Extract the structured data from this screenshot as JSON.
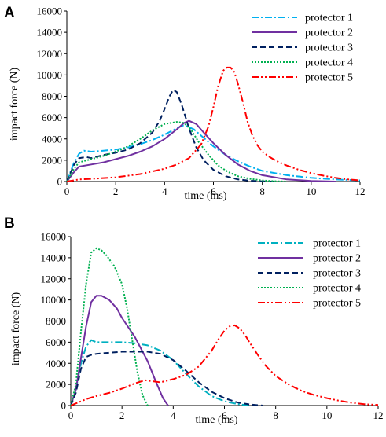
{
  "chart_data": [
    {
      "panel": "A",
      "type": "line",
      "xlabel": "time (ms)",
      "ylabel": "impact force (N)",
      "xlim": [
        0,
        12
      ],
      "ylim": [
        0,
        16000
      ],
      "xticks": [
        0,
        2,
        4,
        6,
        8,
        10,
        12
      ],
      "yticks": [
        0,
        2000,
        4000,
        6000,
        8000,
        10000,
        12000,
        14000,
        16000
      ],
      "legend_position": "top-right",
      "series": [
        {
          "name": "protector 1",
          "color": "#00b0f0",
          "dash": "dashdot",
          "x": [
            0,
            0.3,
            0.5,
            0.7,
            1,
            1.5,
            2,
            2.5,
            3,
            3.5,
            4,
            4.5,
            4.8,
            5.2,
            5.6,
            6,
            6.5,
            7,
            7.5,
            8,
            9,
            10,
            11,
            12
          ],
          "y": [
            0,
            1800,
            2600,
            2900,
            2800,
            2900,
            3000,
            3200,
            3500,
            3900,
            4400,
            5000,
            5300,
            4900,
            4100,
            3300,
            2500,
            1900,
            1400,
            1000,
            600,
            350,
            200,
            100
          ]
        },
        {
          "name": "protector 2",
          "color": "#7030a0",
          "dash": "solid",
          "x": [
            0,
            0.3,
            0.5,
            1,
            1.5,
            2,
            2.5,
            3,
            3.5,
            4,
            4.5,
            4.8,
            5,
            5.3,
            5.6,
            6,
            6.5,
            7,
            7.5,
            8,
            9,
            10,
            11
          ],
          "y": [
            0,
            900,
            1400,
            1600,
            1800,
            2100,
            2400,
            2800,
            3300,
            4000,
            4900,
            5500,
            5700,
            5400,
            4600,
            3600,
            2500,
            1600,
            1000,
            600,
            200,
            60,
            0
          ]
        },
        {
          "name": "protector 3",
          "color": "#002060",
          "dash": "dashed",
          "x": [
            0,
            0.3,
            0.5,
            0.8,
            1,
            1.5,
            2,
            2.5,
            3,
            3.5,
            3.8,
            4,
            4.2,
            4.35,
            4.5,
            4.7,
            5,
            5.3,
            5.6,
            6,
            6.5,
            7,
            7.5,
            8,
            8.5
          ],
          "y": [
            0,
            1600,
            2200,
            2300,
            2200,
            2500,
            2700,
            3000,
            3600,
            4600,
            5700,
            6800,
            8000,
            8600,
            8400,
            7200,
            5000,
            3200,
            2000,
            1100,
            500,
            200,
            80,
            20,
            0
          ]
        },
        {
          "name": "protector 4",
          "color": "#00b050",
          "dash": "dotted",
          "x": [
            0,
            0.3,
            0.5,
            1,
            1.5,
            2,
            2.5,
            3,
            3.5,
            4,
            4.5,
            4.8,
            5.1,
            5.4,
            5.8,
            6.2,
            6.6,
            7,
            7.5,
            8,
            8.5,
            9
          ],
          "y": [
            0,
            1200,
            1800,
            2100,
            2400,
            2800,
            3300,
            4000,
            4800,
            5400,
            5600,
            5500,
            4800,
            3700,
            2500,
            1500,
            900,
            500,
            250,
            100,
            30,
            0
          ]
        },
        {
          "name": "protector 5",
          "color": "#ff0000",
          "dash": "dashdotdot",
          "x": [
            0,
            0.5,
            1,
            2,
            3,
            4,
            4.5,
            5,
            5.5,
            5.8,
            6,
            6.2,
            6.4,
            6.55,
            6.7,
            6.85,
            7,
            7.2,
            7.4,
            7.6,
            7.8,
            8,
            8.3,
            8.6,
            9,
            9.5,
            10,
            10.5,
            11,
            11.5,
            12
          ],
          "y": [
            0,
            200,
            250,
            400,
            700,
            1200,
            1600,
            2200,
            3500,
            5200,
            7000,
            9000,
            10400,
            10700,
            10700,
            10300,
            9200,
            7500,
            5600,
            4300,
            3400,
            2800,
            2300,
            1900,
            1500,
            1100,
            800,
            550,
            350,
            200,
            100
          ]
        }
      ]
    },
    {
      "panel": "B",
      "type": "line",
      "xlabel": "time (ms)",
      "ylabel": "impact force (N)",
      "xlim": [
        0,
        12
      ],
      "ylim": [
        0,
        16000
      ],
      "xticks": [
        0,
        2,
        4,
        6,
        8,
        10,
        12
      ],
      "yticks": [
        0,
        2000,
        4000,
        6000,
        8000,
        10000,
        12000,
        14000,
        16000
      ],
      "legend_position": "top-right",
      "series": [
        {
          "name": "protector 1",
          "color": "#00b0c0",
          "dash": "dashdot",
          "x": [
            0,
            0.2,
            0.4,
            0.6,
            0.8,
            1,
            1.5,
            2,
            2.5,
            3,
            3.5,
            4,
            4.5,
            5,
            5.5,
            6,
            6.5,
            7
          ],
          "y": [
            0,
            1500,
            4000,
            5600,
            6200,
            6000,
            6000,
            6000,
            5900,
            5700,
            5200,
            4300,
            3000,
            1800,
            900,
            400,
            150,
            0
          ]
        },
        {
          "name": "protector 2",
          "color": "#7030a0",
          "dash": "solid",
          "x": [
            0,
            0.2,
            0.4,
            0.6,
            0.8,
            1,
            1.2,
            1.5,
            1.8,
            2,
            2.5,
            3,
            3.3,
            3.6,
            3.8
          ],
          "y": [
            0,
            1500,
            4500,
            7500,
            9800,
            10400,
            10400,
            10000,
            9200,
            8300,
            6500,
            4200,
            2400,
            700,
            0
          ]
        },
        {
          "name": "protector 3",
          "color": "#002060",
          "dash": "dashed",
          "x": [
            0,
            0.2,
            0.4,
            0.6,
            0.8,
            1,
            1.5,
            2,
            2.5,
            3,
            3.5,
            4,
            4.5,
            5,
            5.5,
            6,
            6.5,
            7,
            7.5
          ],
          "y": [
            0,
            1200,
            3500,
            4600,
            4800,
            4900,
            5000,
            5100,
            5100,
            5100,
            4900,
            4300,
            3300,
            2200,
            1300,
            700,
            300,
            100,
            0
          ]
        },
        {
          "name": "protector 4",
          "color": "#00b050",
          "dash": "dotted",
          "x": [
            0,
            0.2,
            0.4,
            0.6,
            0.8,
            1,
            1.2,
            1.4,
            1.7,
            2,
            2.2,
            2.4,
            2.6,
            2.8,
            3
          ],
          "y": [
            0,
            2000,
            7000,
            11500,
            14500,
            14900,
            14700,
            14200,
            13200,
            11500,
            9200,
            6200,
            3200,
            1000,
            0
          ]
        },
        {
          "name": "protector 5",
          "color": "#ff0000",
          "dash": "dashdotdot",
          "x": [
            0,
            0.3,
            0.6,
            1,
            1.5,
            2,
            2.5,
            2.9,
            3.2,
            3.5,
            4,
            4.5,
            5,
            5.5,
            5.8,
            6,
            6.2,
            6.4,
            6.6,
            6.8,
            7,
            7.3,
            7.6,
            8,
            8.5,
            9,
            9.5,
            10,
            10.5,
            11,
            11.5,
            12
          ],
          "y": [
            0,
            300,
            600,
            900,
            1200,
            1600,
            2100,
            2400,
            2300,
            2200,
            2500,
            2900,
            3700,
            5200,
            6400,
            7100,
            7500,
            7600,
            7300,
            6700,
            5900,
            4800,
            3800,
            2800,
            2000,
            1400,
            1000,
            700,
            450,
            250,
            120,
            60
          ]
        }
      ]
    }
  ]
}
